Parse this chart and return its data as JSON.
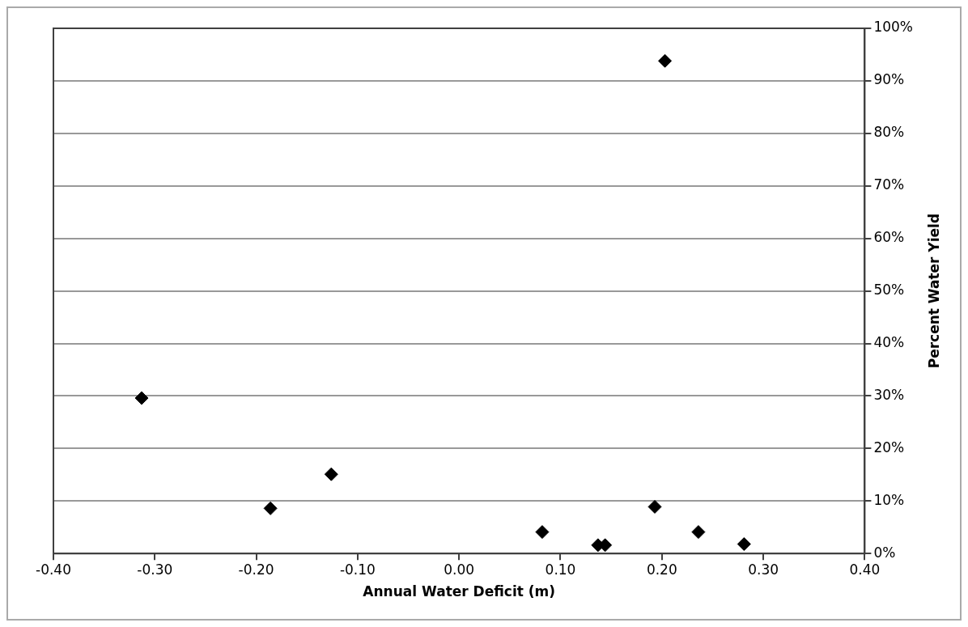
{
  "chart_data": {
    "type": "scatter",
    "xlabel": "Annual Water Deficit (m)",
    "ylabel": "Percent Water Yield",
    "x": [
      -0.313,
      -0.186,
      -0.126,
      0.082,
      0.137,
      0.144,
      0.193,
      0.203,
      0.236,
      0.281
    ],
    "series": [
      {
        "color": "#000000",
        "values": [
          29.6,
          8.6,
          15.1,
          4.1,
          1.6,
          1.6,
          8.9,
          93.8,
          4.1,
          1.8
        ]
      }
    ],
    "xlim": [
      -0.4,
      0.4
    ],
    "xticks": [
      {
        "value": -0.4,
        "label": "-0.40"
      },
      {
        "value": -0.3,
        "label": "-0.30"
      },
      {
        "value": -0.2,
        "label": "-0.20"
      },
      {
        "value": -0.1,
        "label": "-0.10"
      },
      {
        "value": 0,
        "label": "0.00"
      },
      {
        "value": 0.1,
        "label": "0.10"
      },
      {
        "value": 0.2,
        "label": "0.20"
      },
      {
        "value": 0.3,
        "label": "0.30"
      },
      {
        "value": 0.4,
        "label": "0.40"
      }
    ],
    "ylim": [
      0,
      100
    ],
    "yticks": [
      {
        "value": 0,
        "label": "0%"
      },
      {
        "value": 10,
        "label": "10%"
      },
      {
        "value": 20,
        "label": "20%"
      },
      {
        "value": 30,
        "label": "30%"
      },
      {
        "value": 40,
        "label": "40%"
      },
      {
        "value": 50,
        "label": "50%"
      },
      {
        "value": 60,
        "label": "60%"
      },
      {
        "value": 70,
        "label": "70%"
      },
      {
        "value": 80,
        "label": "80%"
      },
      {
        "value": 90,
        "label": "90%"
      },
      {
        "value": 100,
        "label": "100%"
      }
    ],
    "grid": "y",
    "legend": false,
    "marker": "diamond"
  }
}
